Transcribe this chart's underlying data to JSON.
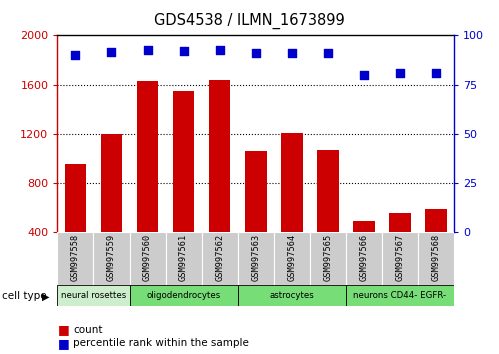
{
  "title": "GDS4538 / ILMN_1673899",
  "samples": [
    "GSM997558",
    "GSM997559",
    "GSM997560",
    "GSM997561",
    "GSM997562",
    "GSM997563",
    "GSM997564",
    "GSM997565",
    "GSM997566",
    "GSM997567",
    "GSM997568"
  ],
  "counts": [
    950,
    1200,
    1630,
    1545,
    1640,
    1055,
    1205,
    1065,
    490,
    555,
    585
  ],
  "percentiles": [
    90,
    91.5,
    92.5,
    92,
    92.5,
    91,
    91,
    91,
    80,
    81,
    81
  ],
  "ylim_left": [
    400,
    2000
  ],
  "ylim_right": [
    0,
    100
  ],
  "yticks_left": [
    400,
    800,
    1200,
    1600,
    2000
  ],
  "yticks_right": [
    0,
    25,
    50,
    75,
    100
  ],
  "bar_color": "#cc0000",
  "dot_color": "#0000cc",
  "cell_types": [
    {
      "label": "neural rosettes",
      "start": 0,
      "end": 2,
      "color": "#cceecc"
    },
    {
      "label": "oligodendrocytes",
      "start": 2,
      "end": 5,
      "color": "#77dd77"
    },
    {
      "label": "astrocytes",
      "start": 5,
      "end": 8,
      "color": "#77dd77"
    },
    {
      "label": "neurons CD44- EGFR-",
      "start": 8,
      "end": 11,
      "color": "#77dd77"
    }
  ],
  "cell_type_label": "cell type",
  "legend_count_label": "count",
  "legend_pct_label": "percentile rank within the sample",
  "grid_lines": [
    800,
    1200,
    1600
  ],
  "sample_bg_color": "#cccccc",
  "plot_bg_color": "#ffffff"
}
